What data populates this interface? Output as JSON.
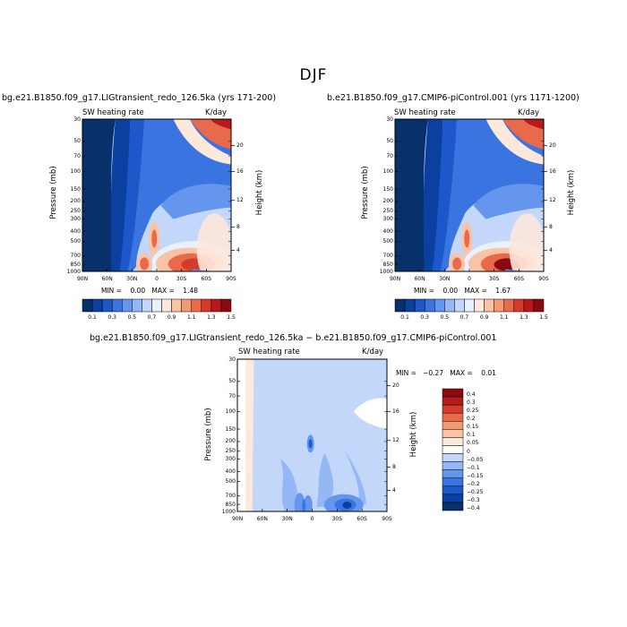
{
  "figure_title": "DJF",
  "panels": [
    {
      "run_title": "bg.e21.B1850.f09_g17.LIGtransient_redo_126.5ka (yrs 171-200)",
      "left_label": "SW heating rate",
      "right_label": "K/day",
      "stats": "MIN =    0.00   MAX =    1.48",
      "ylabel": "Pressure  (mb)",
      "y2label": "Height  (km)"
    },
    {
      "run_title": "b.e21.B1850.f09_g17.CMIP6-piControl.001 (yrs 1171-1200)",
      "left_label": "SW heating rate",
      "right_label": "K/day",
      "stats": "MIN =    0.00   MAX =    1.67",
      "ylabel": "Pressure  (mb)",
      "y2label": "Height  (km)"
    },
    {
      "run_title": "bg.e21.B1850.f09_g17.LIGtransient_redo_126.5ka − b.e21.B1850.f09_g17.CMIP6-piControl.001",
      "left_label": "SW heating rate",
      "right_label": "K/day",
      "stats": "MIN =   −0.27   MAX =    0.01",
      "ylabel": "Pressure  (mb)",
      "y2label": "Height  (km)"
    }
  ],
  "chart_data": [
    {
      "type": "heatmap",
      "title": "bg.e21.B1850.f09_g17.LIGtransient_redo_126.5ka (yrs 171-200)",
      "xlabel": "",
      "ylabel": "Pressure  (mb)",
      "y2label": "Height  (km)",
      "x_ticks": [
        "90N",
        "60N",
        "30N",
        "0",
        "30S",
        "60S",
        "90S"
      ],
      "x_values": [
        90,
        60,
        30,
        0,
        -30,
        -60,
        -90
      ],
      "y_ticks": [
        "30",
        "50",
        "70",
        "100",
        "150",
        "200",
        "250",
        "300",
        "400",
        "500",
        "700",
        "850",
        "1000"
      ],
      "y2_ticks": [
        "20",
        "16",
        "12",
        "8",
        "4"
      ],
      "colorbar_labels": [
        "0.1",
        "0.3",
        "0.5",
        "0.7",
        "0.9",
        "1.1",
        "1.3",
        "1.5"
      ],
      "colorbar_levels": [
        0.1,
        0.2,
        0.3,
        0.4,
        0.5,
        0.6,
        0.7,
        0.8,
        0.9,
        1.0,
        1.1,
        1.2,
        1.3,
        1.4,
        1.5
      ],
      "min": 0.0,
      "max": 1.48,
      "features": [
        {
          "lat": -45,
          "p": 850,
          "value": 1.45
        },
        {
          "lat": 0,
          "p": 450,
          "value": 1.1
        },
        {
          "lat": 15,
          "p": 830,
          "value": 1.0
        },
        {
          "lat": -80,
          "p": 30,
          "value": 1.4
        }
      ]
    },
    {
      "type": "heatmap",
      "title": "b.e21.B1850.f09_g17.CMIP6-piControl.001 (yrs 1171-1200)",
      "xlabel": "",
      "ylabel": "Pressure  (mb)",
      "y2label": "Height  (km)",
      "x_ticks": [
        "90N",
        "60N",
        "30N",
        "0",
        "30S",
        "60S",
        "90S"
      ],
      "x_values": [
        90,
        60,
        30,
        0,
        -30,
        -60,
        -90
      ],
      "y_ticks": [
        "30",
        "50",
        "70",
        "100",
        "150",
        "200",
        "250",
        "300",
        "400",
        "500",
        "700",
        "850",
        "1000"
      ],
      "y2_ticks": [
        "20",
        "16",
        "12",
        "8",
        "4"
      ],
      "colorbar_labels": [
        "0.1",
        "0.3",
        "0.5",
        "0.7",
        "0.9",
        "1.1",
        "1.3",
        "1.5"
      ],
      "colorbar_levels": [
        0.1,
        0.2,
        0.3,
        0.4,
        0.5,
        0.6,
        0.7,
        0.8,
        0.9,
        1.0,
        1.1,
        1.2,
        1.3,
        1.4,
        1.5
      ],
      "min": 0.0,
      "max": 1.67,
      "features": [
        {
          "lat": -45,
          "p": 860,
          "value": 1.6
        },
        {
          "lat": 0,
          "p": 450,
          "value": 1.1
        },
        {
          "lat": 15,
          "p": 830,
          "value": 1.0
        },
        {
          "lat": -80,
          "p": 30,
          "value": 1.5
        }
      ]
    },
    {
      "type": "heatmap",
      "title": "bg.e21.B1850.f09_g17.LIGtransient_redo_126.5ka − b.e21.B1850.f09_g17.CMIP6-piControl.001",
      "xlabel": "",
      "ylabel": "Pressure  (mb)",
      "y2label": "Height  (km)",
      "x_ticks": [
        "90N",
        "60N",
        "30N",
        "0",
        "30S",
        "60S",
        "90S"
      ],
      "x_values": [
        90,
        60,
        30,
        0,
        -30,
        -60,
        -90
      ],
      "y_ticks": [
        "30",
        "50",
        "70",
        "100",
        "150",
        "200",
        "250",
        "300",
        "400",
        "500",
        "700",
        "850",
        "1000"
      ],
      "y2_ticks": [
        "20",
        "16",
        "12",
        "8",
        "4"
      ],
      "colorbar_labels": [
        "0.4",
        "0.3",
        "0.25",
        "0.2",
        "0.15",
        "0.1",
        "0.05",
        "0",
        "−0.05",
        "−0.1",
        "−0.15",
        "−0.2",
        "−0.25",
        "−0.3",
        "−0.4"
      ],
      "min": -0.27,
      "max": 0.01,
      "features": [
        {
          "lat": -45,
          "p": 860,
          "value": -0.27
        },
        {
          "lat": 0,
          "p": 220,
          "value": -0.2
        },
        {
          "lat": 15,
          "p": 870,
          "value": -0.2
        }
      ]
    }
  ],
  "colors": {
    "frame": "#000000",
    "seq_palette": [
      "#08306b",
      "#0b3fa0",
      "#1c58c9",
      "#3a74e0",
      "#6496ee",
      "#93b8f5",
      "#c2d7fa",
      "#e9f1ff",
      "#fde8dc",
      "#fbc3a5",
      "#f59874",
      "#e96a4b",
      "#d63a2a",
      "#b8191b",
      "#8b0a0f"
    ],
    "div_palette": [
      "#8b0a0f",
      "#b8191b",
      "#d63a2a",
      "#e96a4b",
      "#f59874",
      "#fbc3a5",
      "#fde8dc",
      "#ffffff",
      "#c2d7fa",
      "#93b8f5",
      "#6496ee",
      "#3a74e0",
      "#1c58c9",
      "#0b3fa0",
      "#08306b"
    ]
  }
}
